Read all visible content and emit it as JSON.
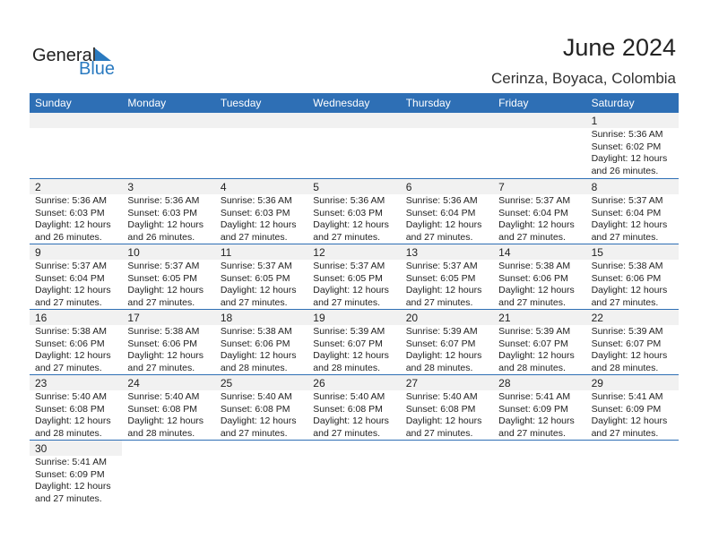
{
  "logo": {
    "word1": "General",
    "word2": "Blue"
  },
  "title": "June 2024",
  "location": "Cerinza, Boyaca, Colombia",
  "colors": {
    "header": "#2e6fb5",
    "accent": "#2a7ac0"
  },
  "weekdays": [
    "Sunday",
    "Monday",
    "Tuesday",
    "Wednesday",
    "Thursday",
    "Friday",
    "Saturday"
  ],
  "first_weekday_offset": 6,
  "days": [
    {
      "day": "1",
      "sunrise": "Sunrise: 5:36 AM",
      "sunset": "Sunset: 6:02 PM",
      "daylight1": "Daylight: 12 hours",
      "daylight2": "and 26 minutes."
    },
    {
      "day": "2",
      "sunrise": "Sunrise: 5:36 AM",
      "sunset": "Sunset: 6:03 PM",
      "daylight1": "Daylight: 12 hours",
      "daylight2": "and 26 minutes."
    },
    {
      "day": "3",
      "sunrise": "Sunrise: 5:36 AM",
      "sunset": "Sunset: 6:03 PM",
      "daylight1": "Daylight: 12 hours",
      "daylight2": "and 26 minutes."
    },
    {
      "day": "4",
      "sunrise": "Sunrise: 5:36 AM",
      "sunset": "Sunset: 6:03 PM",
      "daylight1": "Daylight: 12 hours",
      "daylight2": "and 27 minutes."
    },
    {
      "day": "5",
      "sunrise": "Sunrise: 5:36 AM",
      "sunset": "Sunset: 6:03 PM",
      "daylight1": "Daylight: 12 hours",
      "daylight2": "and 27 minutes."
    },
    {
      "day": "6",
      "sunrise": "Sunrise: 5:36 AM",
      "sunset": "Sunset: 6:04 PM",
      "daylight1": "Daylight: 12 hours",
      "daylight2": "and 27 minutes."
    },
    {
      "day": "7",
      "sunrise": "Sunrise: 5:37 AM",
      "sunset": "Sunset: 6:04 PM",
      "daylight1": "Daylight: 12 hours",
      "daylight2": "and 27 minutes."
    },
    {
      "day": "8",
      "sunrise": "Sunrise: 5:37 AM",
      "sunset": "Sunset: 6:04 PM",
      "daylight1": "Daylight: 12 hours",
      "daylight2": "and 27 minutes."
    },
    {
      "day": "9",
      "sunrise": "Sunrise: 5:37 AM",
      "sunset": "Sunset: 6:04 PM",
      "daylight1": "Daylight: 12 hours",
      "daylight2": "and 27 minutes."
    },
    {
      "day": "10",
      "sunrise": "Sunrise: 5:37 AM",
      "sunset": "Sunset: 6:05 PM",
      "daylight1": "Daylight: 12 hours",
      "daylight2": "and 27 minutes."
    },
    {
      "day": "11",
      "sunrise": "Sunrise: 5:37 AM",
      "sunset": "Sunset: 6:05 PM",
      "daylight1": "Daylight: 12 hours",
      "daylight2": "and 27 minutes."
    },
    {
      "day": "12",
      "sunrise": "Sunrise: 5:37 AM",
      "sunset": "Sunset: 6:05 PM",
      "daylight1": "Daylight: 12 hours",
      "daylight2": "and 27 minutes."
    },
    {
      "day": "13",
      "sunrise": "Sunrise: 5:37 AM",
      "sunset": "Sunset: 6:05 PM",
      "daylight1": "Daylight: 12 hours",
      "daylight2": "and 27 minutes."
    },
    {
      "day": "14",
      "sunrise": "Sunrise: 5:38 AM",
      "sunset": "Sunset: 6:06 PM",
      "daylight1": "Daylight: 12 hours",
      "daylight2": "and 27 minutes."
    },
    {
      "day": "15",
      "sunrise": "Sunrise: 5:38 AM",
      "sunset": "Sunset: 6:06 PM",
      "daylight1": "Daylight: 12 hours",
      "daylight2": "and 27 minutes."
    },
    {
      "day": "16",
      "sunrise": "Sunrise: 5:38 AM",
      "sunset": "Sunset: 6:06 PM",
      "daylight1": "Daylight: 12 hours",
      "daylight2": "and 27 minutes."
    },
    {
      "day": "17",
      "sunrise": "Sunrise: 5:38 AM",
      "sunset": "Sunset: 6:06 PM",
      "daylight1": "Daylight: 12 hours",
      "daylight2": "and 27 minutes."
    },
    {
      "day": "18",
      "sunrise": "Sunrise: 5:38 AM",
      "sunset": "Sunset: 6:06 PM",
      "daylight1": "Daylight: 12 hours",
      "daylight2": "and 28 minutes."
    },
    {
      "day": "19",
      "sunrise": "Sunrise: 5:39 AM",
      "sunset": "Sunset: 6:07 PM",
      "daylight1": "Daylight: 12 hours",
      "daylight2": "and 28 minutes."
    },
    {
      "day": "20",
      "sunrise": "Sunrise: 5:39 AM",
      "sunset": "Sunset: 6:07 PM",
      "daylight1": "Daylight: 12 hours",
      "daylight2": "and 28 minutes."
    },
    {
      "day": "21",
      "sunrise": "Sunrise: 5:39 AM",
      "sunset": "Sunset: 6:07 PM",
      "daylight1": "Daylight: 12 hours",
      "daylight2": "and 28 minutes."
    },
    {
      "day": "22",
      "sunrise": "Sunrise: 5:39 AM",
      "sunset": "Sunset: 6:07 PM",
      "daylight1": "Daylight: 12 hours",
      "daylight2": "and 28 minutes."
    },
    {
      "day": "23",
      "sunrise": "Sunrise: 5:40 AM",
      "sunset": "Sunset: 6:08 PM",
      "daylight1": "Daylight: 12 hours",
      "daylight2": "and 28 minutes."
    },
    {
      "day": "24",
      "sunrise": "Sunrise: 5:40 AM",
      "sunset": "Sunset: 6:08 PM",
      "daylight1": "Daylight: 12 hours",
      "daylight2": "and 28 minutes."
    },
    {
      "day": "25",
      "sunrise": "Sunrise: 5:40 AM",
      "sunset": "Sunset: 6:08 PM",
      "daylight1": "Daylight: 12 hours",
      "daylight2": "and 27 minutes."
    },
    {
      "day": "26",
      "sunrise": "Sunrise: 5:40 AM",
      "sunset": "Sunset: 6:08 PM",
      "daylight1": "Daylight: 12 hours",
      "daylight2": "and 27 minutes."
    },
    {
      "day": "27",
      "sunrise": "Sunrise: 5:40 AM",
      "sunset": "Sunset: 6:08 PM",
      "daylight1": "Daylight: 12 hours",
      "daylight2": "and 27 minutes."
    },
    {
      "day": "28",
      "sunrise": "Sunrise: 5:41 AM",
      "sunset": "Sunset: 6:09 PM",
      "daylight1": "Daylight: 12 hours",
      "daylight2": "and 27 minutes."
    },
    {
      "day": "29",
      "sunrise": "Sunrise: 5:41 AM",
      "sunset": "Sunset: 6:09 PM",
      "daylight1": "Daylight: 12 hours",
      "daylight2": "and 27 minutes."
    },
    {
      "day": "30",
      "sunrise": "Sunrise: 5:41 AM",
      "sunset": "Sunset: 6:09 PM",
      "daylight1": "Daylight: 12 hours",
      "daylight2": "and 27 minutes."
    }
  ]
}
